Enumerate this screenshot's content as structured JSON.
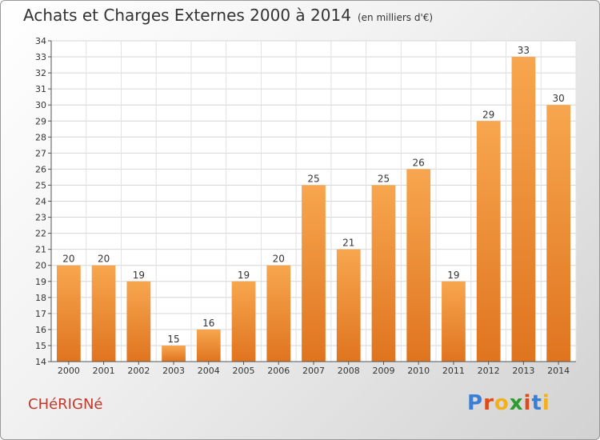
{
  "header": {
    "title": "Achats et Charges Externes 2000 à 2014",
    "subtitle": "(en milliers d'€)"
  },
  "footer": {
    "commune": "CHéRIGNé",
    "brand": "Proxiti"
  },
  "colors": {
    "bar_light": "#f7a64f",
    "bar_dark": "#e0741f",
    "commune_text": "#c0392b",
    "brand_letters": [
      "#3a7fd6",
      "#e04a1a",
      "#f3b01c",
      "#2e9b2e",
      "#e04a1a",
      "#3a7fd6",
      "#f3b01c"
    ]
  },
  "chart_data": {
    "type": "bar",
    "categories": [
      "2000",
      "2001",
      "2002",
      "2003",
      "2004",
      "2005",
      "2006",
      "2007",
      "2008",
      "2009",
      "2010",
      "2011",
      "2012",
      "2013",
      "2014"
    ],
    "values": [
      20,
      20,
      19,
      15,
      16,
      19,
      20,
      25,
      21,
      25,
      26,
      19,
      29,
      33,
      30
    ],
    "ylim": [
      14,
      34
    ],
    "yticks": [
      14,
      15,
      16,
      17,
      18,
      19,
      20,
      21,
      22,
      23,
      24,
      25,
      26,
      27,
      28,
      29,
      30,
      31,
      32,
      33,
      34
    ],
    "grid": true
  }
}
